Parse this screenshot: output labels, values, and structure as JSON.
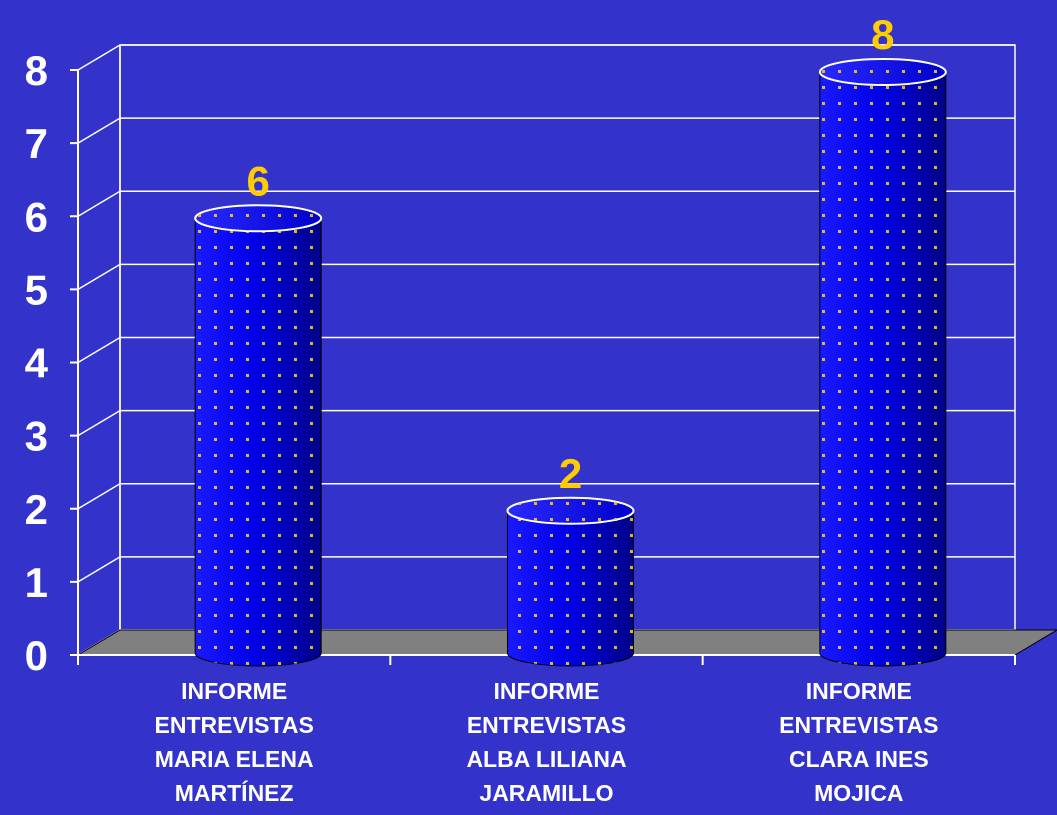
{
  "chart_data": {
    "type": "bar",
    "title": "",
    "xlabel": "",
    "ylabel": "",
    "categories": [
      [
        "INFORME",
        "ENTREVISTAS",
        "MARIA ELENA",
        "MARTÍNEZ"
      ],
      [
        "INFORME",
        "ENTREVISTAS",
        "ALBA LILIANA",
        "JARAMILLO"
      ],
      [
        "INFORME",
        "ENTREVISTAS",
        "CLARA INES",
        "MOJICA"
      ]
    ],
    "values": [
      6,
      2,
      8
    ],
    "data_labels": [
      "6",
      "2",
      "8"
    ],
    "ylim": [
      0,
      8
    ],
    "yticks": [
      "0",
      "1",
      "2",
      "3",
      "4",
      "5",
      "6",
      "7",
      "8"
    ],
    "grid": true,
    "legend": "none",
    "colors": {
      "background": "#3333cc",
      "bar": "#0000ee",
      "bar_dots": "#ffcc00",
      "data_label": "#ffcc00",
      "floor": "#808080",
      "gridline": "#ffffff",
      "text": "#ffffff"
    }
  }
}
